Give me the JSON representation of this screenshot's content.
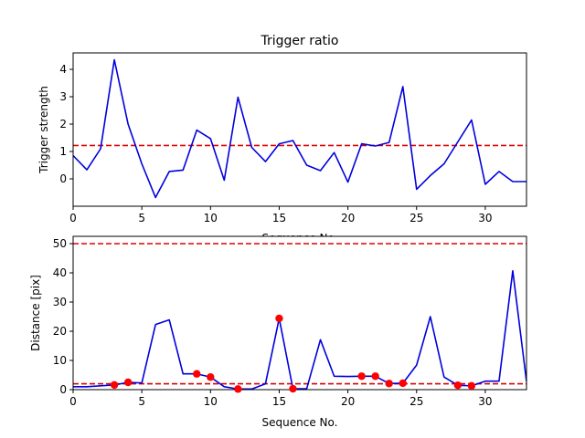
{
  "chart_data": [
    {
      "type": "line",
      "title": "Trigger ratio",
      "xlabel": "Sequence No.",
      "ylabel": "Trigger strength",
      "xlim": [
        0,
        33
      ],
      "ylim": [
        -1.0,
        4.6
      ],
      "xticks": [
        0,
        5,
        10,
        15,
        20,
        25,
        30
      ],
      "yticks": [
        0,
        1,
        2,
        3,
        4
      ],
      "grid": false,
      "series": [
        {
          "color": "#0000dd",
          "x": [
            0,
            1,
            2,
            3,
            4,
            5,
            6,
            7,
            8,
            9,
            10,
            11,
            12,
            13,
            14,
            15,
            16,
            17,
            18,
            19,
            20,
            21,
            22,
            23,
            24,
            25,
            26,
            27,
            28,
            29,
            30,
            31,
            32,
            33
          ],
          "y": [
            0.85,
            0.33,
            1.1,
            4.35,
            2.0,
            0.55,
            -0.68,
            0.27,
            0.32,
            1.78,
            1.47,
            -0.05,
            2.98,
            1.15,
            0.63,
            1.28,
            1.4,
            0.5,
            0.3,
            0.96,
            -0.12,
            1.28,
            1.2,
            1.33,
            3.37,
            -0.38,
            0.12,
            0.55,
            1.35,
            2.15,
            -0.2,
            0.27,
            -0.1,
            -0.1
          ]
        }
      ],
      "hlines": [
        {
          "y": 1.22,
          "color": "#dd0000",
          "style": "dashed"
        }
      ]
    },
    {
      "type": "line",
      "title": "",
      "xlabel": "Sequence No.",
      "ylabel": "Distance [pix]",
      "xlim": [
        0,
        33
      ],
      "ylim": [
        0,
        52.5
      ],
      "xticks": [
        0,
        5,
        10,
        15,
        20,
        25,
        30
      ],
      "yticks": [
        0,
        10,
        20,
        30,
        40,
        50
      ],
      "grid": false,
      "series": [
        {
          "color": "#0000dd",
          "x": [
            0,
            1,
            2,
            3,
            4,
            5,
            6,
            7,
            8,
            9,
            10,
            11,
            12,
            13,
            14,
            15,
            16,
            17,
            18,
            19,
            20,
            21,
            22,
            23,
            24,
            25,
            26,
            27,
            28,
            29,
            30,
            31,
            32,
            33
          ],
          "y": [
            1.0,
            1.0,
            1.3,
            1.6,
            2.5,
            2.3,
            22.3,
            23.9,
            5.4,
            5.4,
            4.3,
            1.0,
            0.2,
            0.2,
            2.0,
            24.4,
            0.3,
            0.3,
            17.1,
            4.6,
            4.5,
            4.6,
            4.6,
            2.1,
            2.2,
            8.4,
            25.0,
            4.3,
            1.5,
            1.3,
            2.9,
            2.9,
            40.7,
            2.8
          ]
        }
      ],
      "markers": {
        "color": "#ff0000",
        "x": [
          3,
          4,
          9,
          10,
          12,
          15,
          16,
          21,
          22,
          23,
          24,
          28,
          29
        ],
        "y": [
          1.6,
          2.5,
          5.4,
          4.3,
          0.2,
          24.4,
          0.3,
          4.6,
          4.6,
          2.1,
          2.2,
          1.5,
          1.3
        ]
      },
      "hlines": [
        {
          "y": 50,
          "color": "#dd0000",
          "style": "dashed"
        },
        {
          "y": 2,
          "color": "#dd0000",
          "style": "dashed"
        }
      ]
    }
  ]
}
